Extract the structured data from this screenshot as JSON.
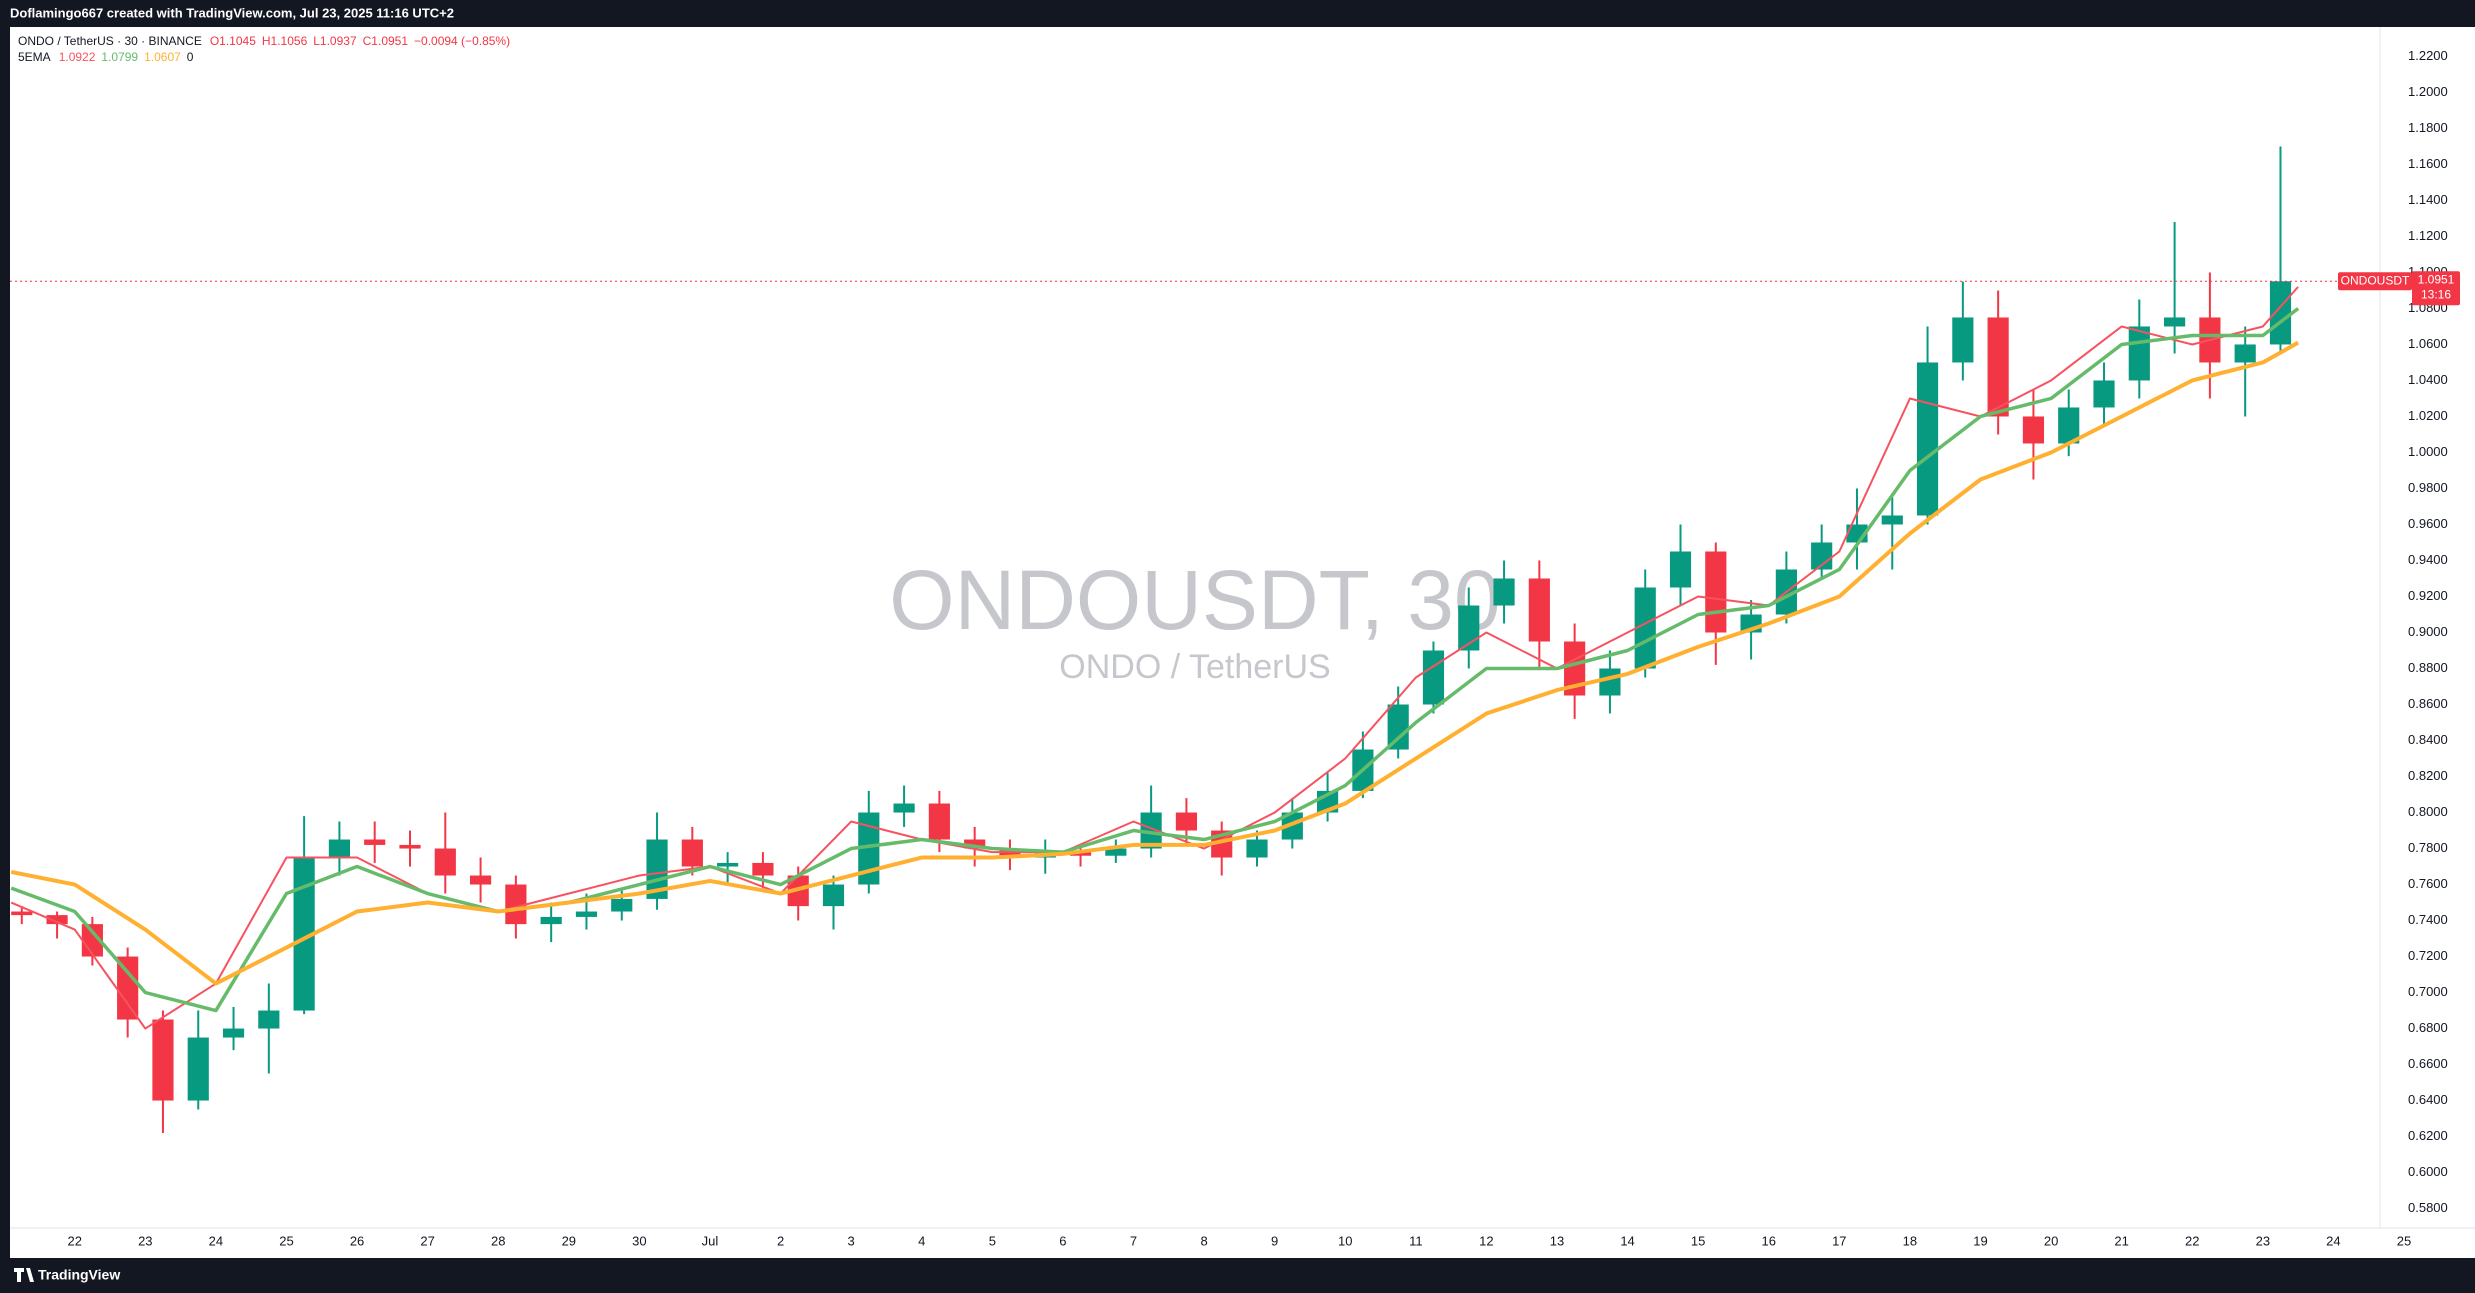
{
  "header": {
    "text": "Doflamingo667 created with TradingView.com, Jul 23, 2025 11:16 UTC+2"
  },
  "footer": {
    "brand": "TradingView"
  },
  "chart_data": {
    "type": "candlestick",
    "legend": {
      "symbol": "ONDO / TetherUS · 30 · BINANCE",
      "ohlc": [
        "O1.1045",
        "H1.1056",
        "L1.0937",
        "C1.0951",
        "−0.0094 (−0.85%)"
      ],
      "indicator": "5EMA",
      "indicator_values": [
        "1.0922",
        "1.0799",
        "1.0607",
        "0"
      ]
    },
    "watermark": "ONDOUSDT, 30",
    "watermark_subtitle": "ONDO / TetherUS",
    "symbol_tag": "ONDOUSDT",
    "last_price": 1.0951,
    "countdown": "13:16",
    "up_color": "#089981",
    "down_color": "#f23645",
    "candles": {
      "x": [
        -0.75,
        -0.25,
        0.25,
        0.75,
        1.25,
        1.75,
        2.25,
        2.75,
        3.25,
        3.75,
        4.25,
        4.75,
        5.25,
        5.75,
        6.25,
        6.75,
        7.25,
        7.75,
        8.25,
        8.75,
        9.25,
        9.75,
        10.25,
        10.75,
        11.25,
        11.75,
        12.25,
        12.75,
        13.25,
        13.75,
        14.25,
        14.75,
        15.25,
        15.75,
        16.25,
        16.75,
        17.25,
        17.75,
        18.25,
        18.75,
        19.25,
        19.75,
        20.25,
        20.75,
        21.25,
        21.75,
        22.25,
        22.75,
        23.25,
        23.75,
        24.25,
        24.75,
        25.25,
        25.75,
        26.25,
        26.75,
        27.25,
        27.75,
        28.25,
        28.75,
        29.25,
        29.75,
        30.25,
        30.75,
        31.25
      ],
      "open": [
        0.745,
        0.743,
        0.738,
        0.72,
        0.685,
        0.64,
        0.675,
        0.68,
        0.69,
        0.775,
        0.785,
        0.782,
        0.78,
        0.765,
        0.76,
        0.738,
        0.742,
        0.745,
        0.752,
        0.785,
        0.77,
        0.772,
        0.765,
        0.748,
        0.76,
        0.8,
        0.805,
        0.785,
        0.78,
        0.775,
        0.778,
        0.776,
        0.78,
        0.8,
        0.79,
        0.775,
        0.785,
        0.8,
        0.812,
        0.835,
        0.86,
        0.89,
        0.915,
        0.93,
        0.895,
        0.865,
        0.88,
        0.925,
        0.945,
        0.9,
        0.91,
        0.935,
        0.95,
        0.96,
        0.965,
        1.05,
        1.075,
        1.02,
        1.005,
        1.025,
        1.04,
        1.07,
        1.075,
        1.05,
        1.06
      ],
      "high": [
        0.748,
        0.745,
        0.742,
        0.725,
        0.69,
        0.69,
        0.692,
        0.705,
        0.798,
        0.795,
        0.795,
        0.79,
        0.8,
        0.775,
        0.765,
        0.75,
        0.755,
        0.758,
        0.8,
        0.792,
        0.778,
        0.778,
        0.77,
        0.765,
        0.812,
        0.815,
        0.812,
        0.792,
        0.785,
        0.785,
        0.782,
        0.785,
        0.815,
        0.808,
        0.795,
        0.79,
        0.808,
        0.822,
        0.845,
        0.87,
        0.895,
        0.925,
        0.94,
        0.94,
        0.905,
        0.89,
        0.935,
        0.96,
        0.95,
        0.918,
        0.945,
        0.96,
        0.98,
        0.975,
        1.07,
        1.095,
        1.09,
        1.035,
        1.035,
        1.05,
        1.085,
        1.128,
        1.1,
        1.07,
        1.17
      ],
      "low": [
        0.738,
        0.73,
        0.715,
        0.675,
        0.622,
        0.635,
        0.668,
        0.655,
        0.688,
        0.765,
        0.772,
        0.77,
        0.755,
        0.75,
        0.73,
        0.728,
        0.735,
        0.74,
        0.746,
        0.765,
        0.76,
        0.758,
        0.74,
        0.735,
        0.755,
        0.792,
        0.778,
        0.77,
        0.768,
        0.766,
        0.77,
        0.772,
        0.775,
        0.782,
        0.765,
        0.77,
        0.78,
        0.795,
        0.808,
        0.83,
        0.855,
        0.88,
        0.905,
        0.88,
        0.852,
        0.855,
        0.875,
        0.915,
        0.882,
        0.885,
        0.905,
        0.93,
        0.935,
        0.935,
        0.96,
        1.04,
        1.01,
        0.985,
        0.998,
        1.015,
        1.03,
        1.055,
        1.03,
        1.02,
        1.055
      ],
      "close": [
        0.743,
        0.738,
        0.72,
        0.685,
        0.64,
        0.675,
        0.68,
        0.69,
        0.775,
        0.785,
        0.782,
        0.78,
        0.765,
        0.76,
        0.738,
        0.742,
        0.745,
        0.752,
        0.785,
        0.77,
        0.772,
        0.765,
        0.748,
        0.76,
        0.8,
        0.805,
        0.785,
        0.78,
        0.775,
        0.778,
        0.776,
        0.78,
        0.8,
        0.79,
        0.775,
        0.785,
        0.8,
        0.812,
        0.835,
        0.86,
        0.89,
        0.915,
        0.93,
        0.895,
        0.865,
        0.88,
        0.925,
        0.945,
        0.9,
        0.91,
        0.935,
        0.95,
        0.96,
        0.965,
        1.05,
        1.075,
        1.02,
        1.005,
        1.025,
        1.04,
        1.07,
        1.075,
        1.05,
        1.06,
        1.0951
      ]
    },
    "series": [
      {
        "color": "#f7525f",
        "width": 2,
        "x": [
          -0.9,
          0,
          1,
          2,
          3,
          4,
          5,
          6,
          7,
          8,
          9,
          10,
          11,
          12,
          13,
          14,
          15,
          16,
          17,
          18,
          19,
          20,
          21,
          22,
          23,
          24,
          25,
          26,
          27,
          28,
          29,
          30,
          31,
          31.5
        ],
        "values": [
          0.75,
          0.735,
          0.68,
          0.705,
          0.775,
          0.775,
          0.755,
          0.745,
          0.755,
          0.765,
          0.77,
          0.755,
          0.795,
          0.785,
          0.778,
          0.778,
          0.795,
          0.78,
          0.8,
          0.83,
          0.875,
          0.9,
          0.88,
          0.9,
          0.92,
          0.915,
          0.945,
          1.03,
          1.02,
          1.04,
          1.07,
          1.06,
          1.07,
          1.092
        ]
      },
      {
        "color": "#66bb6a",
        "width": 3.5,
        "x": [
          -0.9,
          0,
          1,
          2,
          3,
          4,
          5,
          6,
          7,
          8,
          9,
          10,
          11,
          12,
          13,
          14,
          15,
          16,
          17,
          18,
          19,
          20,
          21,
          22,
          23,
          24,
          25,
          26,
          27,
          28,
          29,
          30,
          31,
          31.5
        ],
        "values": [
          0.758,
          0.745,
          0.7,
          0.69,
          0.755,
          0.77,
          0.755,
          0.745,
          0.75,
          0.76,
          0.77,
          0.76,
          0.78,
          0.785,
          0.78,
          0.778,
          0.79,
          0.785,
          0.795,
          0.815,
          0.85,
          0.88,
          0.88,
          0.89,
          0.91,
          0.915,
          0.935,
          0.99,
          1.02,
          1.03,
          1.06,
          1.065,
          1.065,
          1.08
        ]
      },
      {
        "color": "#ffb030",
        "width": 4,
        "x": [
          -0.9,
          0,
          1,
          2,
          3,
          4,
          5,
          6,
          7,
          8,
          9,
          10,
          11,
          12,
          13,
          14,
          15,
          16,
          17,
          18,
          19,
          20,
          21,
          22,
          23,
          24,
          25,
          26,
          27,
          28,
          29,
          30,
          31,
          31.5
        ],
        "values": [
          0.767,
          0.76,
          0.735,
          0.705,
          0.725,
          0.745,
          0.75,
          0.745,
          0.75,
          0.755,
          0.762,
          0.755,
          0.765,
          0.775,
          0.775,
          0.777,
          0.782,
          0.782,
          0.79,
          0.805,
          0.83,
          0.855,
          0.868,
          0.877,
          0.892,
          0.905,
          0.92,
          0.955,
          0.985,
          1.0,
          1.02,
          1.04,
          1.05,
          1.061
        ]
      }
    ],
    "xlim": [
      -0.917,
      32.66
    ],
    "xticks": [
      {
        "value": 0,
        "label": "22"
      },
      {
        "value": 1,
        "label": "23"
      },
      {
        "value": 2,
        "label": "24"
      },
      {
        "value": 3,
        "label": "25"
      },
      {
        "value": 4,
        "label": "26"
      },
      {
        "value": 5,
        "label": "27"
      },
      {
        "value": 6,
        "label": "28"
      },
      {
        "value": 7,
        "label": "29"
      },
      {
        "value": 8,
        "label": "30"
      },
      {
        "value": 9,
        "label": "Jul"
      },
      {
        "value": 10,
        "label": "2"
      },
      {
        "value": 11,
        "label": "3"
      },
      {
        "value": 12,
        "label": "4"
      },
      {
        "value": 13,
        "label": "5"
      },
      {
        "value": 14,
        "label": "6"
      },
      {
        "value": 15,
        "label": "7"
      },
      {
        "value": 16,
        "label": "8"
      },
      {
        "value": 17,
        "label": "9"
      },
      {
        "value": 18,
        "label": "10"
      },
      {
        "value": 19,
        "label": "11"
      },
      {
        "value": 20,
        "label": "12"
      },
      {
        "value": 21,
        "label": "13"
      },
      {
        "value": 22,
        "label": "14"
      },
      {
        "value": 23,
        "label": "15"
      },
      {
        "value": 24,
        "label": "16"
      },
      {
        "value": 25,
        "label": "17"
      },
      {
        "value": 26,
        "label": "18"
      },
      {
        "value": 27,
        "label": "19"
      },
      {
        "value": 28,
        "label": "20"
      },
      {
        "value": 29,
        "label": "21"
      },
      {
        "value": 30,
        "label": "22"
      },
      {
        "value": 31,
        "label": "23"
      },
      {
        "value": 32,
        "label": "24"
      },
      {
        "value": 33,
        "label": "25"
      }
    ],
    "ylim": [
      0.5692,
      1.2358
    ],
    "yticks": [
      {
        "value": 1.22,
        "label": "1.2200"
      },
      {
        "value": 1.2,
        "label": "1.2000"
      },
      {
        "value": 1.18,
        "label": "1.1800"
      },
      {
        "value": 1.16,
        "label": "1.1600"
      },
      {
        "value": 1.14,
        "label": "1.1400"
      },
      {
        "value": 1.12,
        "label": "1.1200"
      },
      {
        "value": 1.1,
        "label": "1.1000"
      },
      {
        "value": 1.08,
        "label": "1.0800"
      },
      {
        "value": 1.06,
        "label": "1.0600"
      },
      {
        "value": 1.04,
        "label": "1.0400"
      },
      {
        "value": 1.02,
        "label": "1.0200"
      },
      {
        "value": 1.0,
        "label": "1.0000"
      },
      {
        "value": 0.98,
        "label": "0.9800"
      },
      {
        "value": 0.96,
        "label": "0.9600"
      },
      {
        "value": 0.94,
        "label": "0.9400"
      },
      {
        "value": 0.92,
        "label": "0.9200"
      },
      {
        "value": 0.9,
        "label": "0.9000"
      },
      {
        "value": 0.88,
        "label": "0.8800"
      },
      {
        "value": 0.86,
        "label": "0.8600"
      },
      {
        "value": 0.84,
        "label": "0.8400"
      },
      {
        "value": 0.82,
        "label": "0.8200"
      },
      {
        "value": 0.8,
        "label": "0.8000"
      },
      {
        "value": 0.78,
        "label": "0.7800"
      },
      {
        "value": 0.76,
        "label": "0.7600"
      },
      {
        "value": 0.74,
        "label": "0.7400"
      },
      {
        "value": 0.72,
        "label": "0.7200"
      },
      {
        "value": 0.7,
        "label": "0.7000"
      },
      {
        "value": 0.68,
        "label": "0.6800"
      },
      {
        "value": 0.66,
        "label": "0.6600"
      },
      {
        "value": 0.64,
        "label": "0.6400"
      },
      {
        "value": 0.62,
        "label": "0.6200"
      },
      {
        "value": 0.6,
        "label": "0.6000"
      },
      {
        "value": 0.58,
        "label": "0.5800"
      }
    ],
    "grid": false
  }
}
